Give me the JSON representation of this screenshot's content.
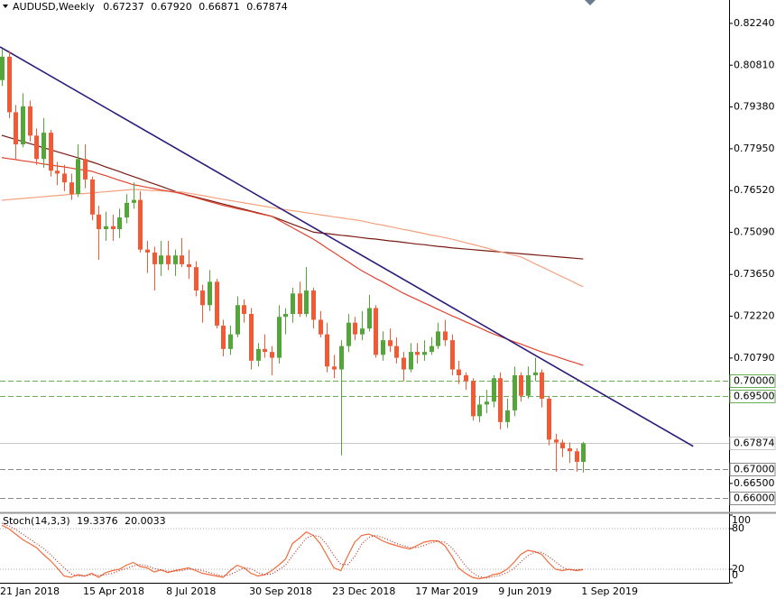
{
  "chart_data": {
    "type": "candlestick",
    "title": "AUDUSD,Weekly",
    "title_values": [
      "0.67237",
      "0.67920",
      "0.66871",
      "0.67874"
    ],
    "categories": [
      "21 Jan 2018",
      null,
      null,
      null,
      null,
      null,
      null,
      null,
      null,
      null,
      null,
      null,
      "15 Apr 2018",
      null,
      null,
      null,
      null,
      null,
      null,
      null,
      null,
      null,
      null,
      null,
      "8 Jul 2018",
      null,
      null,
      null,
      null,
      null,
      null,
      null,
      null,
      null,
      null,
      null,
      "30 Sep 2018",
      null,
      null,
      null,
      null,
      null,
      null,
      null,
      null,
      null,
      null,
      null,
      "23 Dec 2018",
      null,
      null,
      null,
      null,
      null,
      null,
      null,
      null,
      null,
      null,
      null,
      "17 Mar 2019",
      null,
      null,
      null,
      null,
      null,
      null,
      null,
      null,
      null,
      null,
      null,
      "9 Jun 2019",
      null,
      null,
      null,
      null,
      null,
      null,
      null,
      null,
      null,
      null,
      null,
      "1 Sep 2019"
    ],
    "candles": {
      "up_color": "#55a63a",
      "down_color": "#f05a35",
      "open": [
        0.803,
        0.811,
        0.792,
        0.781,
        0.794,
        0.784,
        0.776,
        0.785,
        0.772,
        0.771,
        0.768,
        0.764,
        0.776,
        0.769,
        0.757,
        0.752,
        0.753,
        0.752,
        0.756,
        0.761,
        0.762,
        0.745,
        0.744,
        0.74,
        0.743,
        0.74,
        0.743,
        0.74,
        0.739,
        0.731,
        0.726,
        0.734,
        0.719,
        0.711,
        0.716,
        0.726,
        0.723,
        0.707,
        0.711,
        0.71,
        0.708,
        0.722,
        0.723,
        0.73,
        0.723,
        0.731,
        0.721,
        0.716,
        0.705,
        0.704,
        0.712,
        0.72,
        0.716,
        0.718,
        0.725,
        0.709,
        0.714,
        0.712,
        0.708,
        0.704,
        0.71,
        0.709,
        0.71,
        0.712,
        0.717,
        0.714,
        0.704,
        0.702,
        0.7,
        0.688,
        0.692,
        0.693,
        0.701,
        0.686,
        0.69,
        0.702,
        0.695,
        0.702,
        0.703,
        0.694,
        0.68,
        0.679,
        0.677,
        0.676,
        0.67237
      ],
      "high": [
        0.8136,
        0.813,
        0.7945,
        0.7985,
        0.796,
        0.7865,
        0.79,
        0.786,
        0.775,
        0.774,
        0.771,
        0.781,
        0.781,
        0.77,
        0.76,
        0.758,
        0.757,
        0.759,
        0.764,
        0.768,
        0.765,
        0.748,
        0.746,
        0.748,
        0.748,
        0.745,
        0.749,
        0.745,
        0.741,
        0.733,
        0.738,
        0.735,
        0.721,
        0.719,
        0.729,
        0.728,
        0.725,
        0.713,
        0.716,
        0.712,
        0.726,
        0.725,
        0.732,
        0.734,
        0.739,
        0.732,
        0.724,
        0.72,
        0.709,
        0.714,
        0.723,
        0.722,
        0.724,
        0.7295,
        0.726,
        0.717,
        0.718,
        0.715,
        0.71,
        0.713,
        0.713,
        0.714,
        0.715,
        0.72,
        0.721,
        0.716,
        0.707,
        0.703,
        0.701,
        0.695,
        0.697,
        0.702,
        0.703,
        0.694,
        0.705,
        0.703,
        0.705,
        0.708,
        0.704,
        0.695,
        0.682,
        0.68,
        0.679,
        0.677,
        0.6792
      ],
      "low": [
        0.801,
        0.79,
        0.776,
        0.78,
        0.782,
        0.774,
        0.773,
        0.77,
        0.767,
        0.765,
        0.762,
        0.763,
        0.766,
        0.755,
        0.7415,
        0.748,
        0.748,
        0.749,
        0.754,
        0.759,
        0.744,
        0.737,
        0.731,
        0.736,
        0.738,
        0.736,
        0.739,
        0.735,
        0.729,
        0.72,
        0.724,
        0.718,
        0.7085,
        0.709,
        0.715,
        0.72,
        0.704,
        0.705,
        0.708,
        0.702,
        0.706,
        0.716,
        0.72,
        0.722,
        0.722,
        0.718,
        0.715,
        0.703,
        0.701,
        0.6746,
        0.71,
        0.714,
        0.714,
        0.717,
        0.708,
        0.707,
        0.71,
        0.706,
        0.7,
        0.703,
        0.706,
        0.707,
        0.709,
        0.711,
        0.712,
        0.702,
        0.699,
        0.697,
        0.6865,
        0.686,
        0.689,
        0.691,
        0.6835,
        0.684,
        0.688,
        0.693,
        0.694,
        0.7,
        0.691,
        0.678,
        0.669,
        0.674,
        0.672,
        0.669,
        0.66871
      ],
      "close": [
        0.811,
        0.792,
        0.781,
        0.794,
        0.784,
        0.776,
        0.785,
        0.772,
        0.771,
        0.768,
        0.764,
        0.776,
        0.769,
        0.757,
        0.752,
        0.753,
        0.752,
        0.756,
        0.761,
        0.762,
        0.745,
        0.744,
        0.74,
        0.743,
        0.74,
        0.743,
        0.74,
        0.739,
        0.731,
        0.726,
        0.734,
        0.719,
        0.711,
        0.716,
        0.726,
        0.723,
        0.707,
        0.711,
        0.71,
        0.708,
        0.722,
        0.723,
        0.73,
        0.723,
        0.731,
        0.721,
        0.716,
        0.705,
        0.704,
        0.712,
        0.72,
        0.716,
        0.718,
        0.725,
        0.709,
        0.714,
        0.712,
        0.708,
        0.704,
        0.71,
        0.709,
        0.71,
        0.712,
        0.717,
        0.714,
        0.704,
        0.702,
        0.7,
        0.688,
        0.692,
        0.693,
        0.701,
        0.686,
        0.69,
        0.702,
        0.695,
        0.702,
        0.703,
        0.694,
        0.68,
        0.679,
        0.677,
        0.676,
        0.6724,
        0.67874
      ]
    },
    "lines": [
      {
        "color": "#7b1a12",
        "values": [
          0.7841,
          0.7834,
          0.7827,
          0.782,
          0.7813,
          0.7806,
          0.7799,
          0.7792,
          0.7785,
          0.7778,
          0.7771,
          0.7764,
          0.7757,
          0.775,
          0.7742,
          0.7733,
          0.7725,
          0.7717,
          0.7708,
          0.77,
          0.7692,
          0.7683,
          0.7675,
          0.7667,
          0.7658,
          0.765,
          0.7642,
          0.7636,
          0.763,
          0.7624,
          0.7618,
          0.7612,
          0.7606,
          0.76,
          0.7594,
          0.7588,
          0.7582,
          0.7576,
          0.757,
          0.7564,
          0.7555,
          0.7546,
          0.7537,
          0.7528,
          0.7519,
          0.751,
          0.7507,
          0.7505,
          0.7502,
          0.7499,
          0.7497,
          0.7494,
          0.7491,
          0.7488,
          0.7486,
          0.7483,
          0.748,
          0.7478,
          0.7475,
          0.7472,
          0.7469,
          0.7467,
          0.7464,
          0.7461,
          0.7459,
          0.7456,
          0.7454,
          0.7452,
          0.745,
          0.7448,
          0.7446,
          0.7444,
          0.7442,
          0.744,
          0.7438,
          0.7436,
          0.7434,
          0.7432,
          0.743,
          0.7428,
          0.7426,
          0.7424,
          0.7422,
          0.742,
          0.7418
        ]
      },
      {
        "color": "#f5a07c",
        "values": [
          0.7619,
          0.7621,
          0.7623,
          0.7625,
          0.7627,
          0.7629,
          0.7631,
          0.7633,
          0.7635,
          0.7637,
          0.7639,
          0.7641,
          0.7642,
          0.7644,
          0.7646,
          0.7648,
          0.765,
          0.7652,
          0.7654,
          0.7656,
          0.7655,
          0.7653,
          0.7652,
          0.7651,
          0.765,
          0.7648,
          0.7647,
          0.7643,
          0.7639,
          0.7635,
          0.7631,
          0.7626,
          0.7622,
          0.7618,
          0.7614,
          0.761,
          0.7606,
          0.7602,
          0.7598,
          0.7594,
          0.759,
          0.7587,
          0.7583,
          0.758,
          0.7576,
          0.7573,
          0.7569,
          0.7566,
          0.7562,
          0.7559,
          0.7555,
          0.7552,
          0.7548,
          0.7543,
          0.7538,
          0.7534,
          0.7529,
          0.7524,
          0.7519,
          0.7515,
          0.751,
          0.7505,
          0.75,
          0.7496,
          0.7491,
          0.7486,
          0.748,
          0.7474,
          0.7468,
          0.7462,
          0.7456,
          0.7449,
          0.7443,
          0.7437,
          0.7431,
          0.7425,
          0.7414,
          0.7402,
          0.7391,
          0.738,
          0.7368,
          0.7357,
          0.7346,
          0.7334,
          0.7323
        ]
      },
      {
        "color": "#e0442e",
        "values": [
          0.7765,
          0.7761,
          0.7758,
          0.7754,
          0.7751,
          0.7747,
          0.7743,
          0.774,
          0.7736,
          0.7733,
          0.7729,
          0.7725,
          0.7722,
          0.7718,
          0.771,
          0.7703,
          0.7695,
          0.7687,
          0.768,
          0.7672,
          0.7668,
          0.7663,
          0.7659,
          0.7654,
          0.765,
          0.7646,
          0.7641,
          0.7634,
          0.7628,
          0.7621,
          0.7614,
          0.7608,
          0.7601,
          0.7596,
          0.759,
          0.7585,
          0.758,
          0.7574,
          0.7569,
          0.7564,
          0.7551,
          0.7538,
          0.7525,
          0.7512,
          0.7499,
          0.7486,
          0.7471,
          0.7455,
          0.744,
          0.7424,
          0.7409,
          0.7393,
          0.7378,
          0.7365,
          0.7352,
          0.734,
          0.7327,
          0.7314,
          0.7301,
          0.729,
          0.7279,
          0.7268,
          0.7257,
          0.7246,
          0.7235,
          0.7224,
          0.7214,
          0.7203,
          0.7193,
          0.7183,
          0.7172,
          0.7162,
          0.7153,
          0.7144,
          0.7135,
          0.7127,
          0.7118,
          0.7109,
          0.71,
          0.7092,
          0.7085,
          0.7077,
          0.7069,
          0.7062,
          0.7054
        ]
      }
    ],
    "trendline": {
      "color": "#2b1b7a",
      "values": [
        0.814,
        0.6994
      ]
    },
    "levels": [
      {
        "value": 0.7,
        "label": "0.70000",
        "color": "#6aae55",
        "style": "dashed"
      },
      {
        "value": 0.695,
        "label": "0.69500",
        "color": "#6aae55",
        "style": "dashed"
      },
      {
        "value": 0.67874,
        "label": "0.67874",
        "color": "#c8c8c8",
        "style": "solid"
      },
      {
        "value": 0.67,
        "label": "0.67000",
        "color": "#8a8a8a",
        "style": "dashed"
      },
      {
        "value": 0.66,
        "label": "0.66000",
        "color": "#8a8a8a",
        "style": "dashed"
      }
    ],
    "ylim": [
      0.6554,
      0.8304
    ],
    "yticks": [
      {
        "value": 0.8224,
        "label": "0.82240"
      },
      {
        "value": 0.8081,
        "label": "0.80810"
      },
      {
        "value": 0.7938,
        "label": "0.79380"
      },
      {
        "value": 0.7795,
        "label": "0.77950"
      },
      {
        "value": 0.7652,
        "label": "0.76520"
      },
      {
        "value": 0.7509,
        "label": "0.75090"
      },
      {
        "value": 0.7365,
        "label": "0.73650"
      },
      {
        "value": 0.7222,
        "label": "0.72220"
      },
      {
        "value": 0.7079,
        "label": "0.70790"
      },
      {
        "value": 0.665,
        "label": "0.66500"
      }
    ],
    "indicator": {
      "type": "line",
      "title": "Stoch(14,3,3)",
      "ylim": [
        0,
        100
      ],
      "yticks": [
        100,
        80,
        20,
        0
      ],
      "series": [
        {
          "color": "#f26b3a",
          "style": "solid",
          "values": [
            85,
            80,
            72,
            64,
            58,
            52,
            42,
            33,
            22,
            10,
            8,
            12,
            10,
            14,
            8,
            15,
            18,
            20,
            26,
            30,
            24,
            22,
            16,
            19,
            15,
            18,
            20,
            22,
            18,
            14,
            12,
            10,
            8,
            18,
            26,
            22,
            14,
            10,
            12,
            18,
            26,
            35,
            58,
            66,
            75,
            70,
            58,
            40,
            22,
            18,
            40,
            60,
            70,
            72,
            68,
            62,
            58,
            55,
            52,
            50,
            55,
            60,
            62,
            62,
            55,
            40,
            22,
            14,
            8,
            6,
            8,
            12,
            14,
            20,
            30,
            42,
            48,
            46,
            42,
            30,
            20,
            18,
            20,
            18,
            19.3376
          ]
        },
        {
          "color": "#b03a2e",
          "style": "dotted",
          "values": [
            88,
            84,
            79,
            72,
            65,
            58,
            51,
            42,
            32,
            22,
            13,
            10,
            10,
            12,
            11,
            12,
            14,
            18,
            21,
            25,
            27,
            25,
            21,
            19,
            17,
            17,
            18,
            20,
            20,
            18,
            15,
            12,
            10,
            12,
            17,
            22,
            21,
            15,
            12,
            13,
            19,
            26,
            40,
            53,
            66,
            70,
            68,
            56,
            40,
            27,
            27,
            39,
            57,
            67,
            70,
            67,
            63,
            58,
            55,
            52,
            52,
            55,
            59,
            61,
            60,
            52,
            39,
            25,
            15,
            9,
            7,
            9,
            11,
            15,
            21,
            31,
            40,
            45,
            45,
            39,
            31,
            23,
            19,
            19,
            20.0033
          ]
        }
      ]
    }
  }
}
